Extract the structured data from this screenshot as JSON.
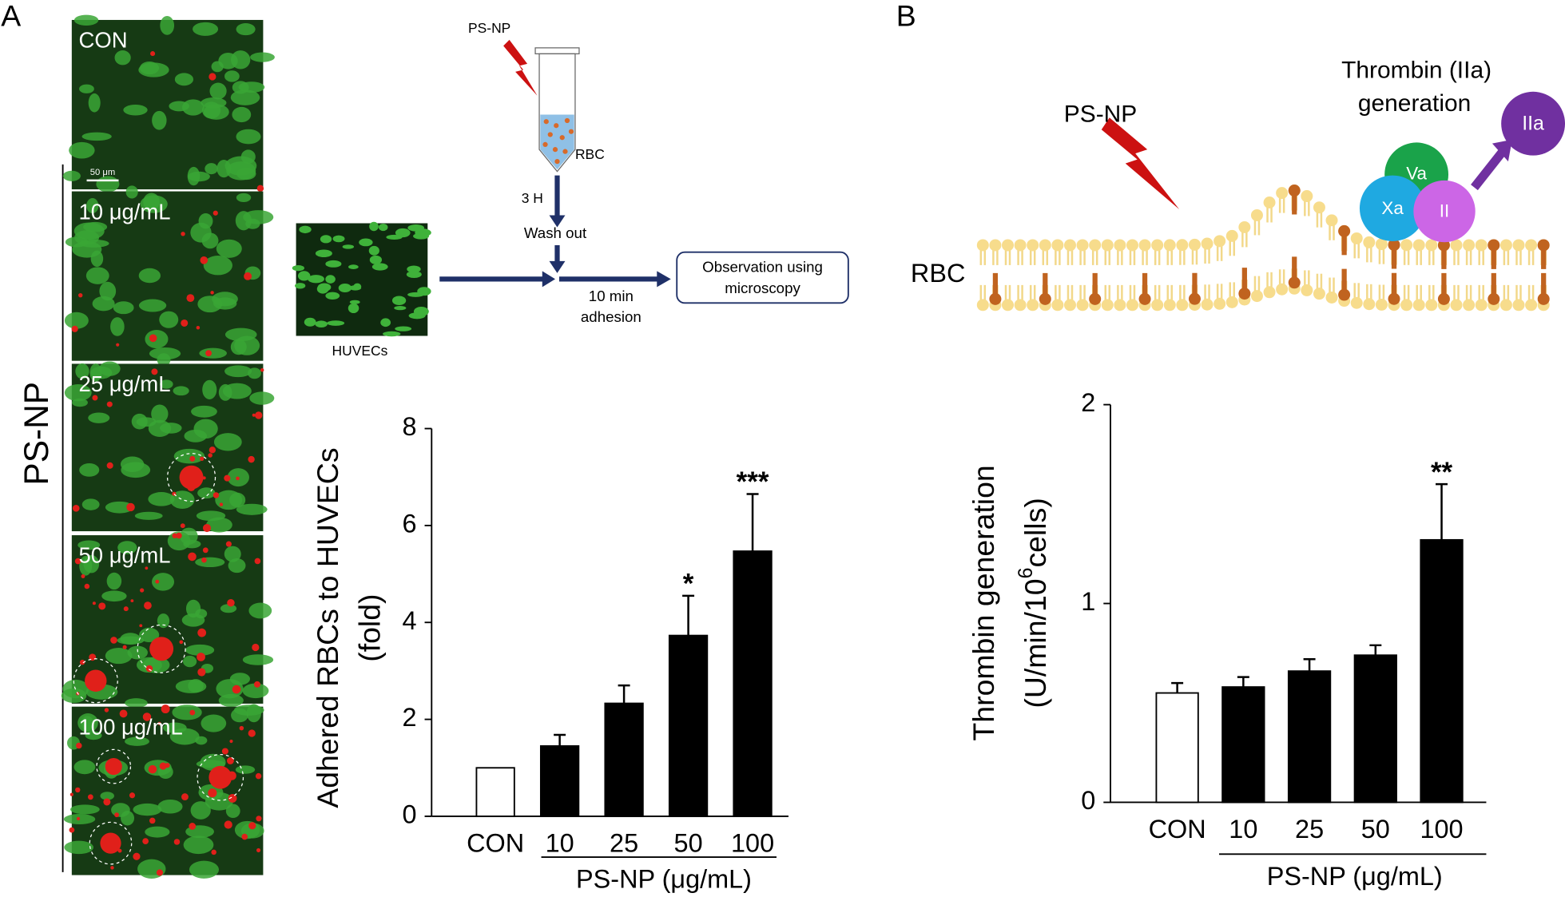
{
  "panel_labels": [
    "A",
    "B"
  ],
  "micrographs": {
    "labels": [
      "CON",
      "10 μg/mL",
      "25 μg/mL",
      "50 μg/mL",
      "100 μg/mL"
    ],
    "scale_bar": "50 μm",
    "group_label": "PS-NP"
  },
  "schematic_a": {
    "agent": "PS-NP",
    "tube": "RBC",
    "incubation": "3 H",
    "wash": "Wash out",
    "cells": "HUVECs",
    "adhesion": [
      "10 min",
      "adhesion"
    ],
    "observation": [
      "Observation using",
      "microscopy"
    ]
  },
  "schematic_b": {
    "agent": "PS-NP",
    "title": [
      "Thrombin (IIa)",
      "generation"
    ],
    "membrane": "RBC",
    "factors": [
      "IIa",
      "Va",
      "Xa",
      "II"
    ]
  },
  "chart_data": [
    {
      "type": "bar",
      "categories": [
        "CON",
        "10",
        "25",
        "50",
        "100"
      ],
      "values": [
        1.0,
        1.45,
        2.33,
        3.73,
        5.47
      ],
      "errors": [
        null,
        0.23,
        0.37,
        0.82,
        1.18
      ],
      "significance": [
        null,
        null,
        null,
        "*",
        "***"
      ],
      "colors": [
        "#ffffff",
        "#000000",
        "#000000",
        "#000000",
        "#000000"
      ],
      "ylim": [
        0,
        8
      ],
      "yticks": [
        0,
        2,
        4,
        6,
        8
      ],
      "y_label": [
        "Adhered RBCs to HUVECs",
        "(fold)"
      ],
      "x_label": "PS-NP (μg/mL)"
    },
    {
      "type": "bar",
      "categories": [
        "CON",
        "10",
        "25",
        "50",
        "100"
      ],
      "values": [
        0.55,
        0.58,
        0.66,
        0.74,
        1.32
      ],
      "errors": [
        0.05,
        0.05,
        0.06,
        0.05,
        0.28
      ],
      "significance": [
        null,
        null,
        null,
        null,
        "**"
      ],
      "colors": [
        "#ffffff",
        "#000000",
        "#000000",
        "#000000",
        "#000000"
      ],
      "ylim": [
        0,
        2
      ],
      "yticks": [
        0,
        1,
        2
      ],
      "y_label": [
        "Thrombin generation",
        "(U/min/10",
        "6",
        "cells)"
      ],
      "x_label": "PS-NP (μg/mL)"
    }
  ]
}
